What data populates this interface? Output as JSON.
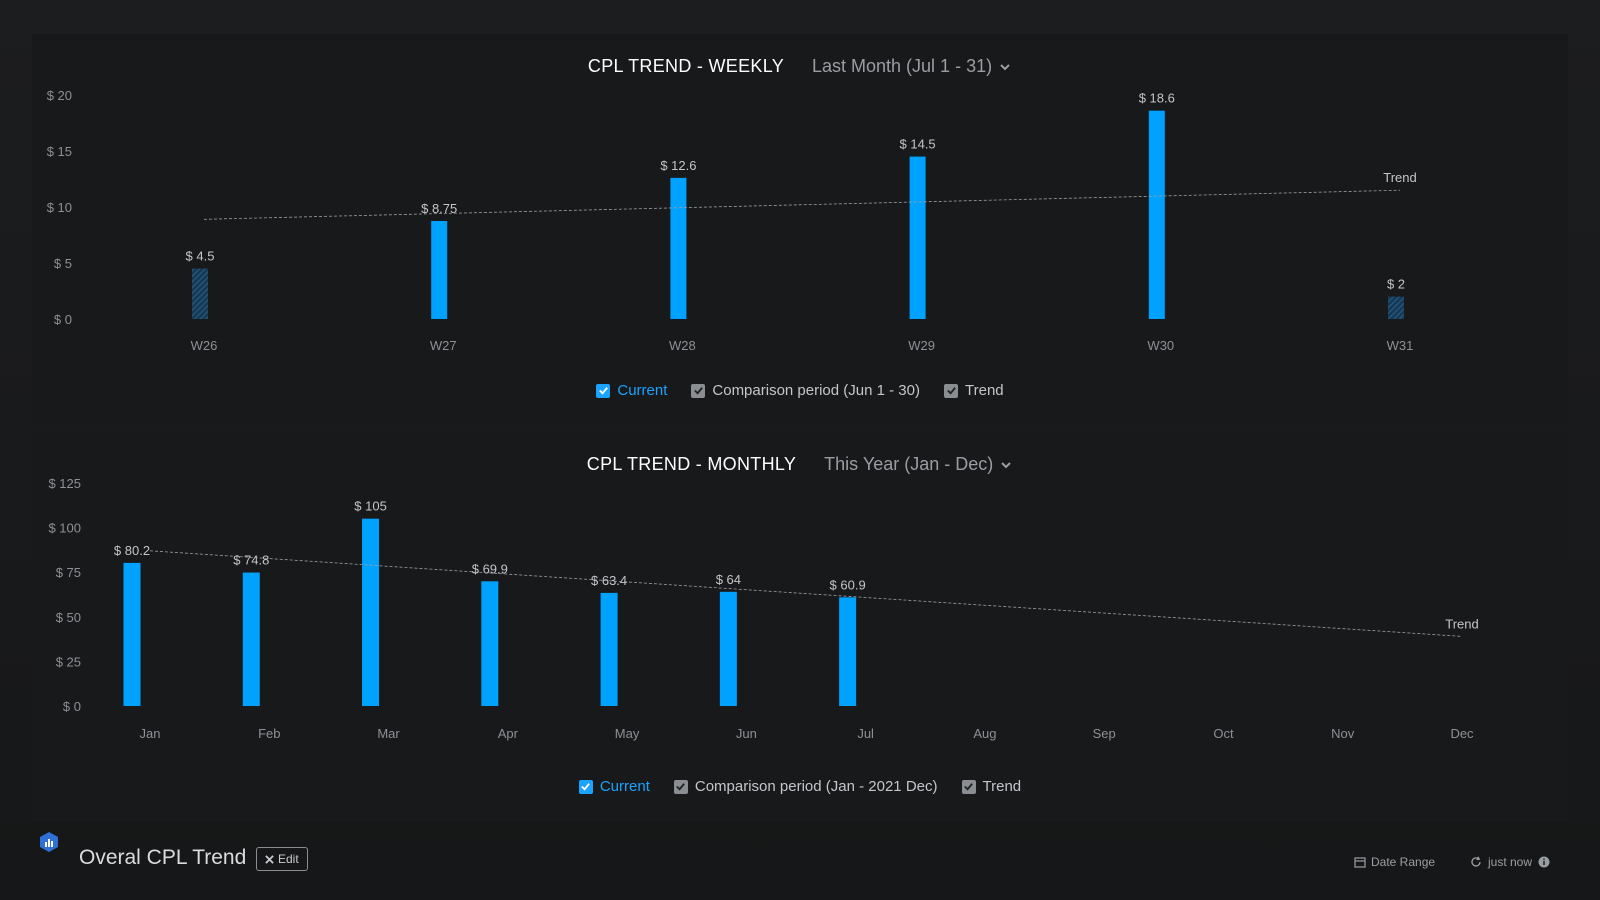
{
  "weekly": {
    "title": "CPL TREND - WEEKLY",
    "period": "Last Month (Jul 1 - 31)",
    "legend": {
      "current": "Current",
      "comparison": "Comparison period (Jun 1 - 30)",
      "trend": "Trend"
    }
  },
  "monthly": {
    "title": "CPL TREND - MONTHLY",
    "period": "This Year (Jan - Dec)",
    "legend": {
      "current": "Current",
      "comparison": "Comparison period (Jan - 2021 Dec)",
      "trend": "Trend"
    }
  },
  "footer": {
    "title": "Overal CPL Trend",
    "edit_label": "Edit",
    "date_range_label": "Date Range",
    "refresh_label": "just now"
  },
  "colors": {
    "bar": "#00a2ff",
    "comparison_hatch": "#2a5f86",
    "trend_line": "#9aa0a6"
  },
  "chart_data": [
    {
      "type": "bar",
      "title": "CPL TREND - WEEKLY",
      "categories": [
        "W26",
        "W27",
        "W28",
        "W29",
        "W30",
        "W31"
      ],
      "y_ticks": [
        "$ 0",
        "$ 5",
        "$ 10",
        "$ 15",
        "$ 20"
      ],
      "ylim": [
        0,
        20
      ],
      "series": [
        {
          "name": "Current",
          "values": [
            4.5,
            8.75,
            12.6,
            14.5,
            18.6,
            2
          ],
          "labels": [
            "$ 4.5",
            "$ 8.75",
            "$ 12.6",
            "$ 14.5",
            "$ 18.6",
            "$ 2"
          ],
          "partial": [
            true,
            false,
            false,
            false,
            false,
            true
          ]
        }
      ],
      "trend": {
        "label": "Trend",
        "start": 8.9,
        "end": 11.5
      }
    },
    {
      "type": "bar",
      "title": "CPL TREND - MONTHLY",
      "categories": [
        "Jan",
        "Feb",
        "Mar",
        "Apr",
        "May",
        "Jun",
        "Jul",
        "Aug",
        "Sep",
        "Oct",
        "Nov",
        "Dec"
      ],
      "y_ticks": [
        "$ 0",
        "$ 25",
        "$ 50",
        "$ 75",
        "$ 100",
        "$ 125"
      ],
      "ylim": [
        0,
        125
      ],
      "series": [
        {
          "name": "Current",
          "values": [
            80.2,
            74.8,
            105,
            69.9,
            63.4,
            64,
            60.9,
            null,
            null,
            null,
            null,
            null
          ],
          "labels": [
            "$ 80.2",
            "$ 74.8",
            "$ 105",
            "$ 69.9",
            "$ 63.4",
            "$ 64",
            "$ 60.9",
            "",
            "",
            "",
            "",
            ""
          ]
        }
      ],
      "trend": {
        "label": "Trend",
        "start": 87,
        "end": 39
      }
    }
  ]
}
